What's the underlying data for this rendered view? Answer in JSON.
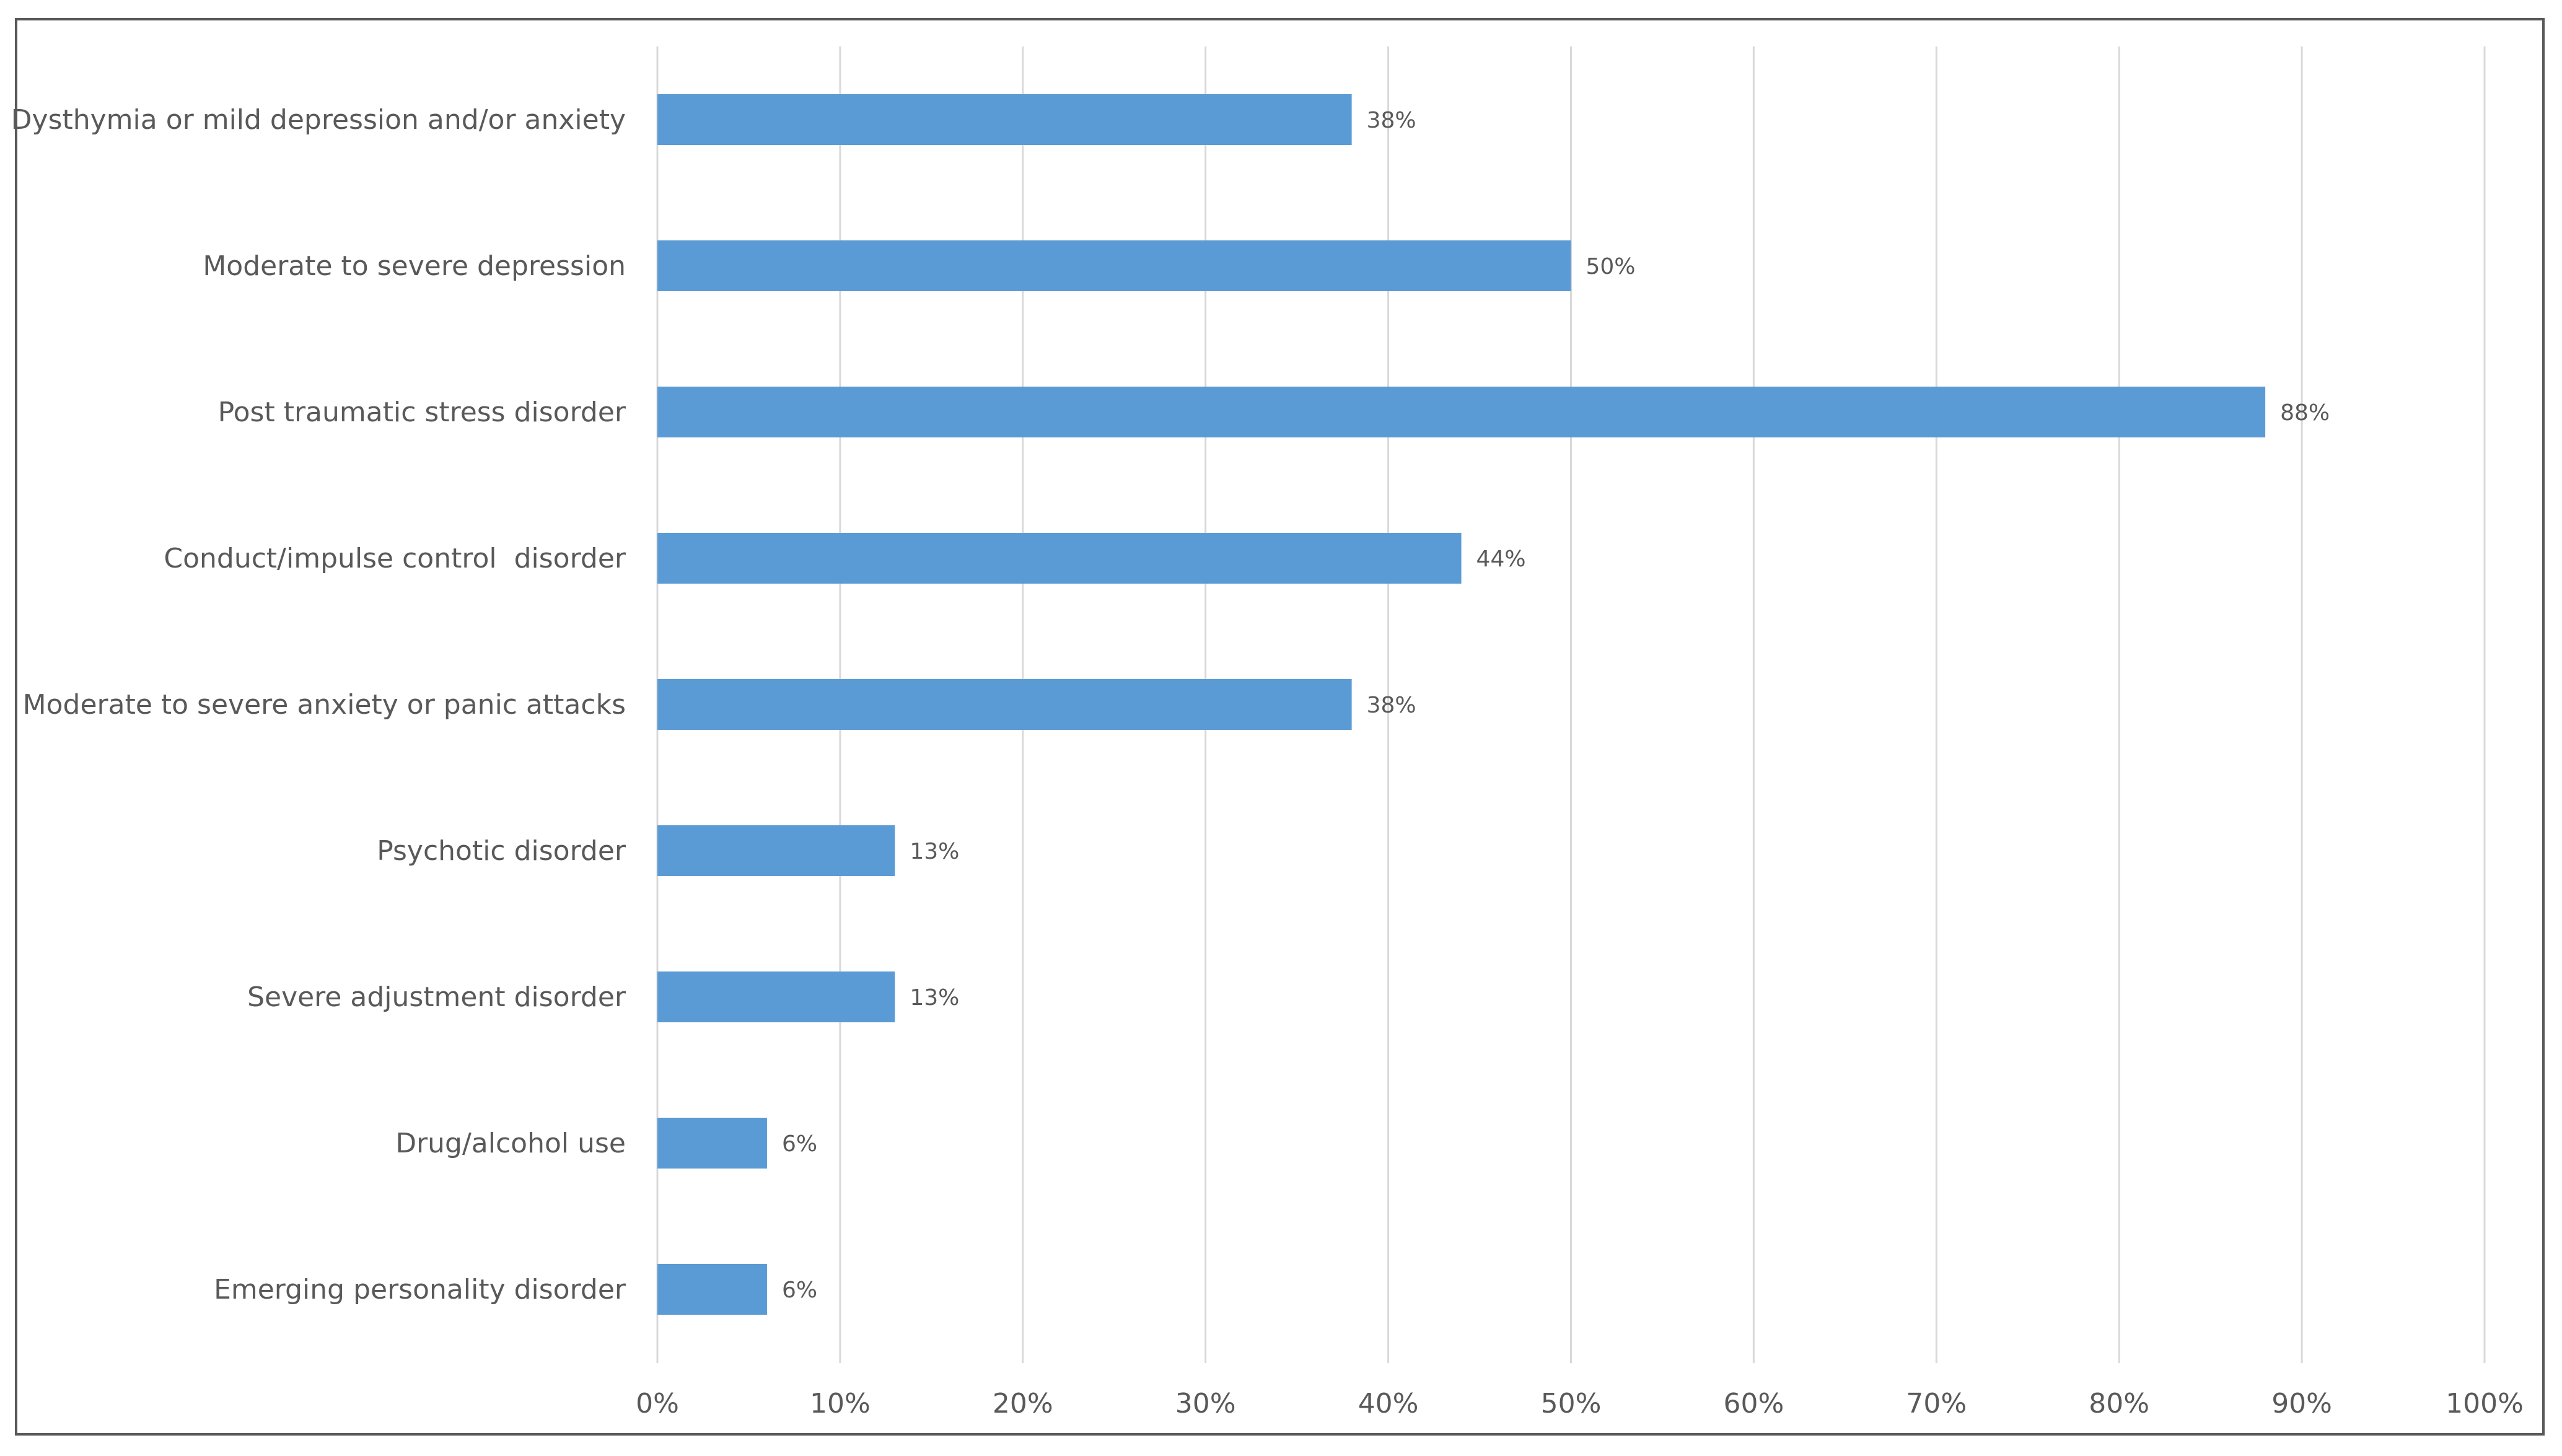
{
  "chart_data": {
    "type": "bar",
    "orientation": "horizontal",
    "title": "",
    "xlabel": "",
    "ylabel": "",
    "categories": [
      "Dysthymia or mild depression and/or anxiety",
      "Moderate to severe depression",
      "Post traumatic stress disorder",
      "Conduct/impulse control  disorder",
      "Moderate to severe anxiety or panic attacks",
      "Psychotic disorder",
      "Severe adjustment disorder",
      "Drug/alcohol use",
      "Emerging personality disorder"
    ],
    "values": [
      38,
      50,
      88,
      44,
      38,
      13,
      13,
      6,
      6
    ],
    "data_labels": [
      "38%",
      "50%",
      "88%",
      "44%",
      "38%",
      "13%",
      "13%",
      "6%",
      "6%"
    ],
    "xlim": [
      0,
      100
    ],
    "x_ticks": [
      0,
      10,
      20,
      30,
      40,
      50,
      60,
      70,
      80,
      90,
      100
    ],
    "x_tick_labels": [
      "0%",
      "10%",
      "20%",
      "30%",
      "40%",
      "50%",
      "60%",
      "70%",
      "80%",
      "90%",
      "100%"
    ],
    "grid": "vertical",
    "legend": "none",
    "bar_color": "#5b9bd5",
    "gridline_color": "#d9d9d9",
    "text_color": "#595959"
  }
}
